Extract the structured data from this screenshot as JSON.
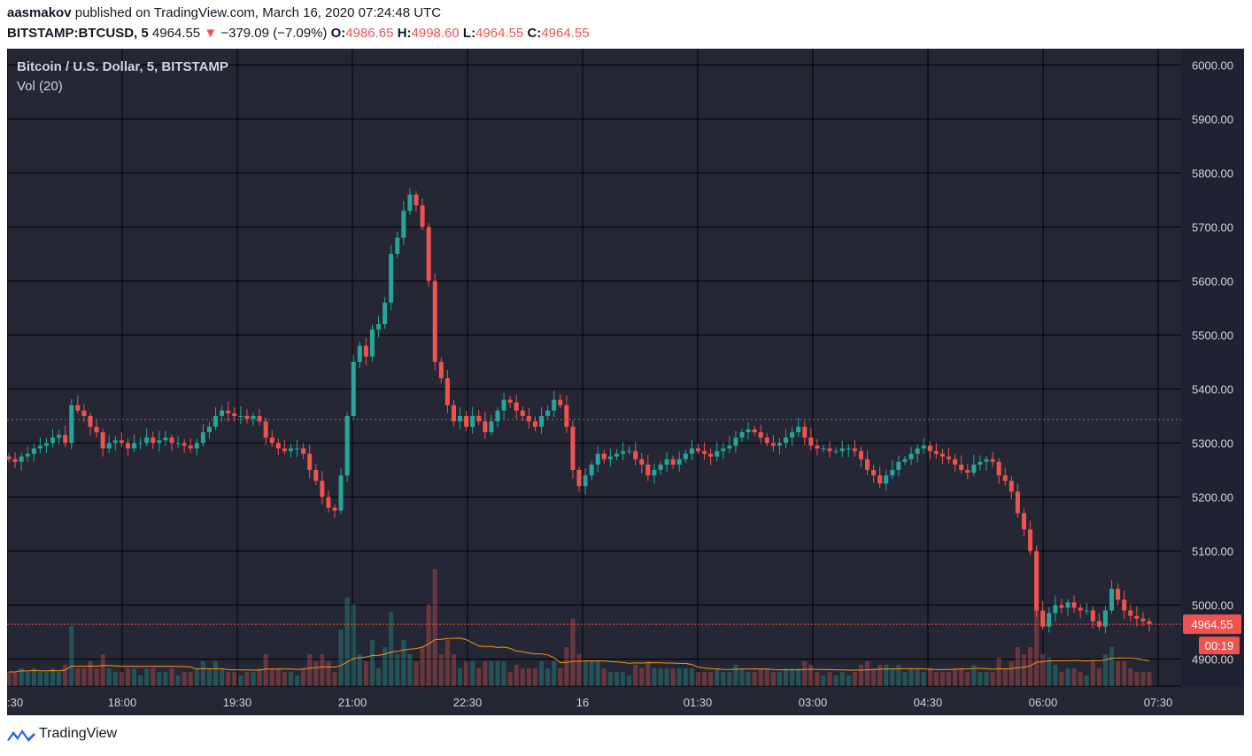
{
  "header": {
    "author": "aasmakov",
    "published_text": "published on TradingView.com, March 16, 2020 07:24:48 UTC",
    "symbol": "BITSTAMP:BTCUSD, 5",
    "last": "4964.55",
    "arrow": "▼",
    "change": "−379.09 (−7.09%)",
    "o_label": "O:",
    "o_value": "4986.65",
    "h_label": "H:",
    "h_value": "4998.60",
    "l_label": "L:",
    "l_value": "4964.55",
    "c_label": "C:",
    "c_value": "4964.55"
  },
  "legend": {
    "title": "Bitcoin / U.S. Dollar, 5, BITSTAMP",
    "volume": "Vol (20)"
  },
  "footer": {
    "brand": "TradingView",
    "icon": "tradingview-logo-icon"
  },
  "colors": {
    "background": "#242733",
    "grid": "#000000",
    "up": "#26a69a",
    "down": "#ef5350",
    "vol_ma": "#f7931a",
    "axis_text": "#d1d4dc"
  },
  "chart_data": {
    "type": "candlestick",
    "title": "Bitcoin / U.S. Dollar, 5, BITSTAMP",
    "y_ticks": [
      "6000.00",
      "5900.00",
      "5800.00",
      "5700.00",
      "5600.00",
      "5500.00",
      "5400.00",
      "5300.00",
      "5200.00",
      "5100.00",
      "5000.00",
      "4900.00"
    ],
    "ylim": [
      4850,
      6030
    ],
    "x_ticks": [
      ":30",
      "18:00",
      "19:30",
      "21:00",
      "22:30",
      "16",
      "01:30",
      "03:00",
      "04:30",
      "06:00",
      "07:30"
    ],
    "last_price_label": "4964.55",
    "last_price": 4964.55,
    "countdown_label": "00:19",
    "dotted_ref_price": 5343.6,
    "closes": [
      5270,
      5265,
      5275,
      5280,
      5290,
      5295,
      5300,
      5310,
      5315,
      5300,
      5370,
      5360,
      5350,
      5330,
      5320,
      5290,
      5300,
      5305,
      5300,
      5290,
      5300,
      5300,
      5310,
      5300,
      5305,
      5310,
      5300,
      5300,
      5295,
      5290,
      5300,
      5320,
      5330,
      5350,
      5360,
      5355,
      5350,
      5350,
      5345,
      5350,
      5340,
      5310,
      5300,
      5290,
      5285,
      5290,
      5290,
      5280,
      5250,
      5230,
      5200,
      5180,
      5175,
      5240,
      5350,
      5450,
      5480,
      5460,
      5510,
      5520,
      5560,
      5650,
      5680,
      5730,
      5760,
      5740,
      5700,
      5600,
      5450,
      5420,
      5370,
      5340,
      5350,
      5330,
      5350,
      5340,
      5320,
      5340,
      5360,
      5380,
      5375,
      5360,
      5350,
      5340,
      5330,
      5350,
      5360,
      5380,
      5370,
      5330,
      5250,
      5220,
      5240,
      5260,
      5280,
      5270,
      5275,
      5280,
      5285,
      5285,
      5270,
      5260,
      5240,
      5250,
      5260,
      5270,
      5260,
      5270,
      5280,
      5290,
      5285,
      5280,
      5275,
      5285,
      5290,
      5295,
      5310,
      5320,
      5325,
      5320,
      5310,
      5300,
      5295,
      5300,
      5310,
      5320,
      5330,
      5310,
      5295,
      5290,
      5290,
      5285,
      5285,
      5290,
      5290,
      5285,
      5270,
      5250,
      5240,
      5225,
      5240,
      5250,
      5265,
      5270,
      5280,
      5290,
      5295,
      5285,
      5280,
      5275,
      5270,
      5260,
      5250,
      5245,
      5260,
      5265,
      5270,
      5265,
      5240,
      5230,
      5210,
      5170,
      5140,
      5100,
      4990,
      4960,
      4985,
      5000,
      4995,
      5005,
      4995,
      4990,
      4990,
      4970,
      4960,
      4990,
      5030,
      5010,
      4990,
      4980,
      4975,
      4970,
      4965
    ]
  }
}
